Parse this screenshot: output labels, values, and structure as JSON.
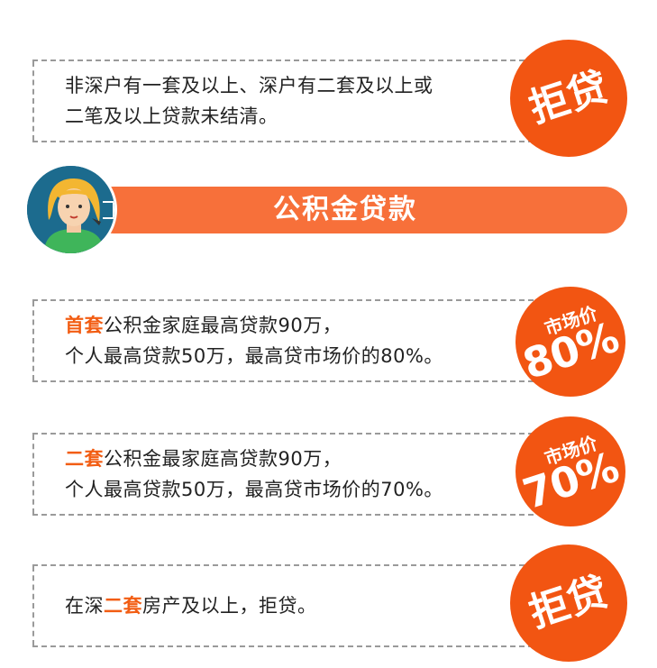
{
  "panels": [
    {
      "id": "no-second-commercial",
      "lines": [
        "非深户有一套及以上、深户有二套及以上或",
        "二笔及以上贷款未结清。"
      ],
      "badge": "拒贷"
    },
    {
      "id": "first-home",
      "highlight": "首套",
      "line1_rest": "公积金家庭最高贷款90万，",
      "line2": "个人最高贷款50万，最高贷市场价的80%。",
      "badge_label": "市场价",
      "badge_value": "80%"
    },
    {
      "id": "second-home",
      "highlight": "二套",
      "line1_rest": "公积金最家庭高贷款90万，",
      "line2": "个人最高贷款50万，最高贷市场价的70%。",
      "badge_label": "市场价",
      "badge_value": "70%"
    },
    {
      "id": "third-home",
      "prefix": "在深",
      "highlight": "二套",
      "suffix": "房产及以上，拒贷。",
      "badge": "拒贷"
    }
  ],
  "banner": {
    "title": "公积金贷款"
  },
  "avatar": {
    "icon": "woman-avatar-icon"
  },
  "colors": {
    "accent": "#f25512",
    "banner": "#f7703a",
    "highlight": "#f25d13",
    "avatar_bg": "#1c6b8e"
  }
}
